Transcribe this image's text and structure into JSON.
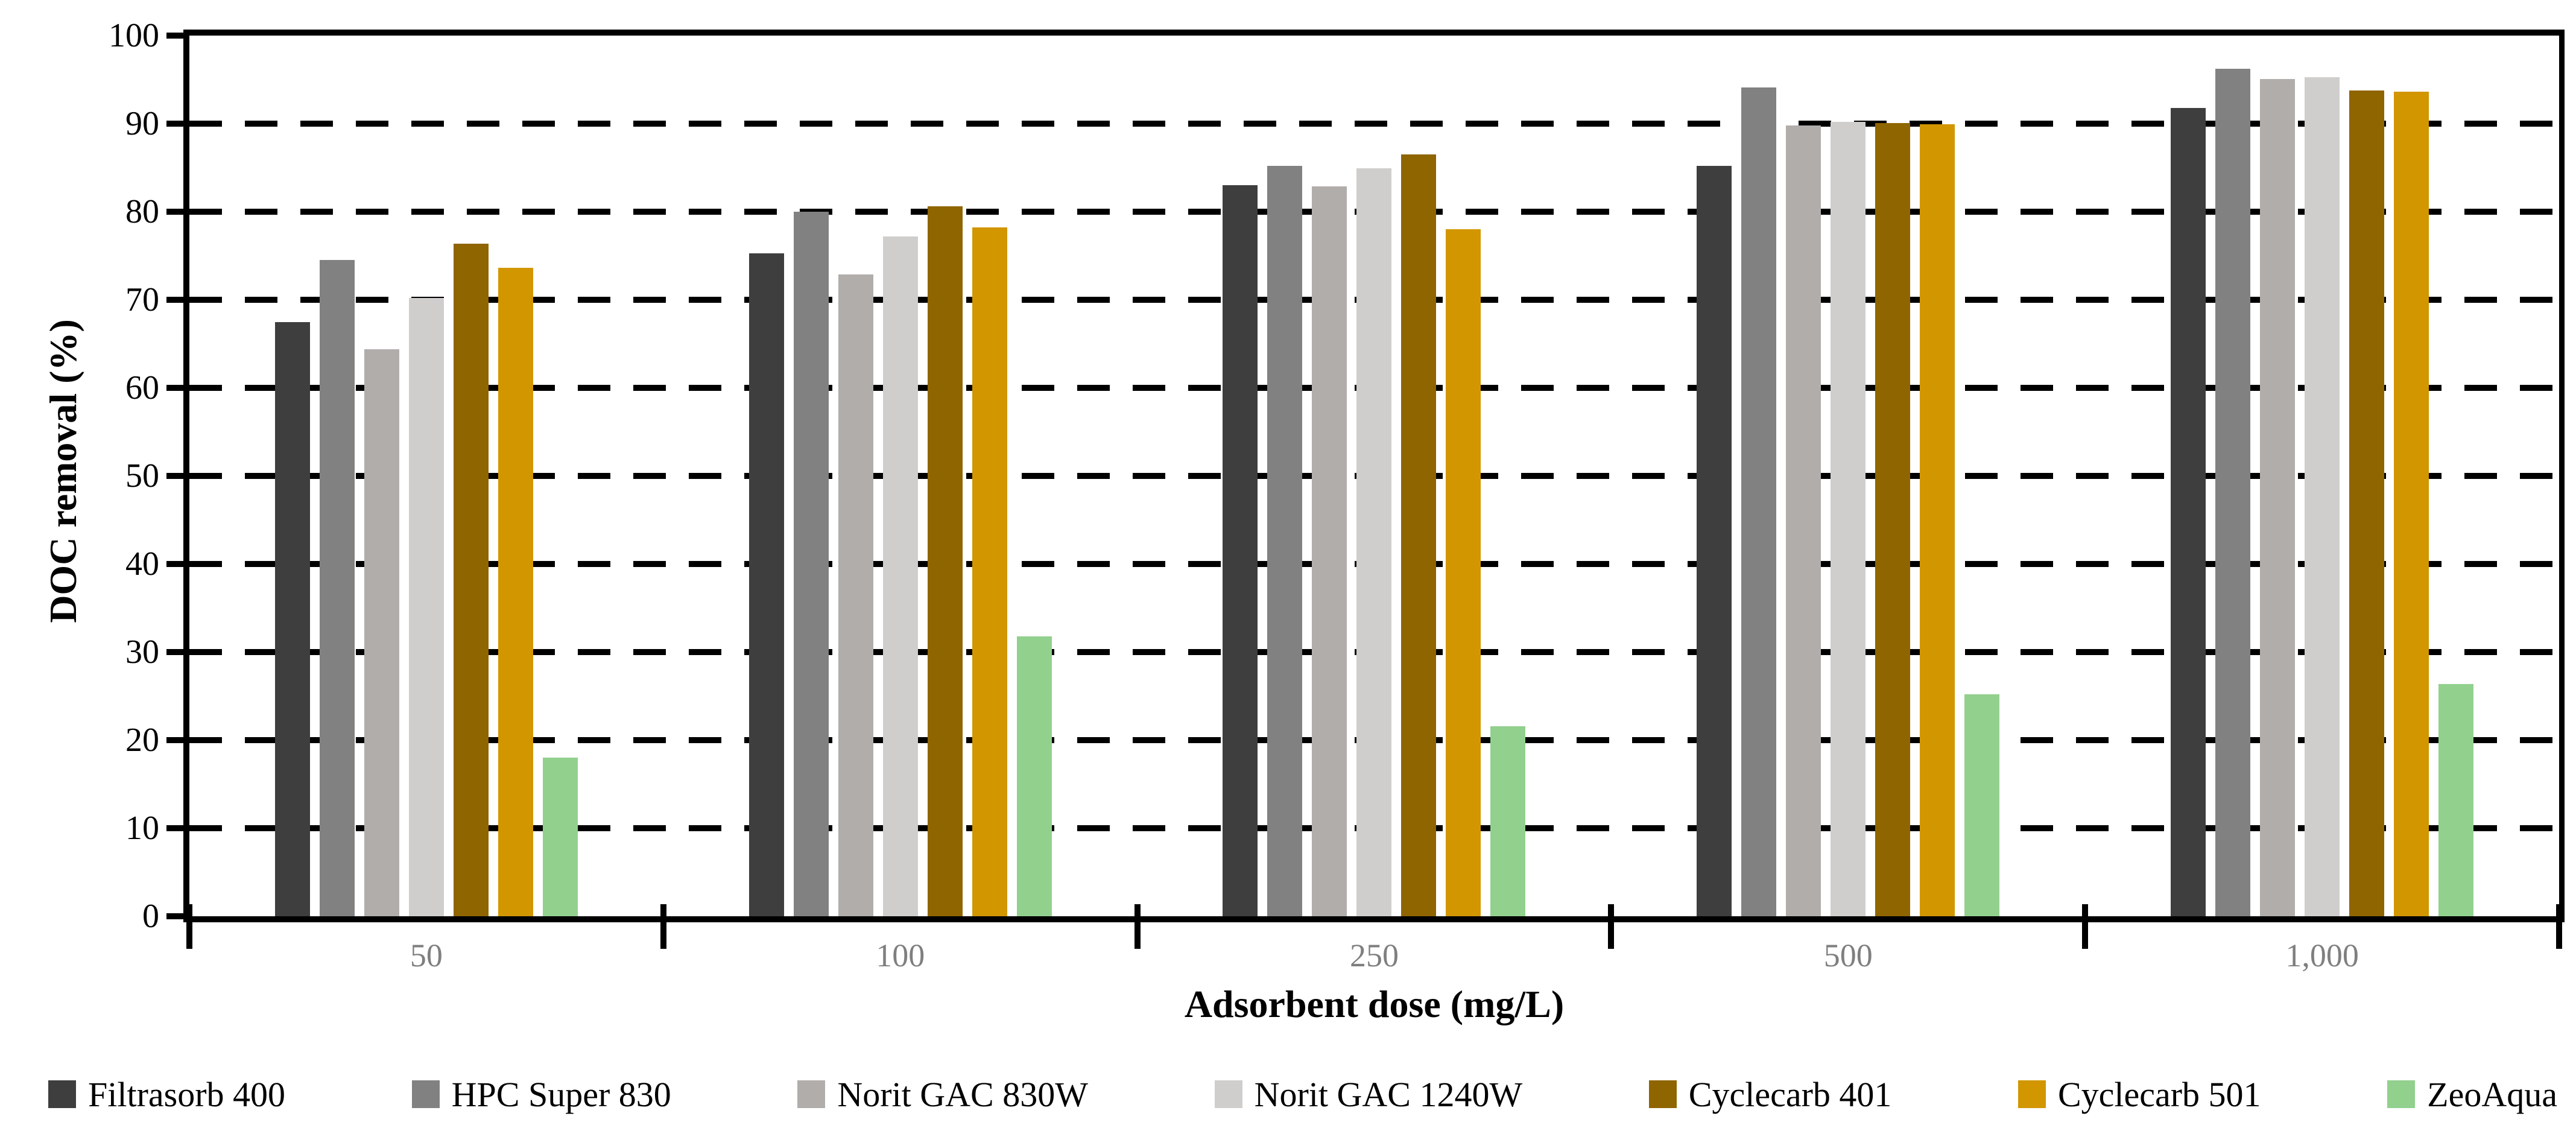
{
  "chart_data": {
    "type": "bar",
    "title": "",
    "xlabel": "Adsorbent dose (mg/L)",
    "ylabel": "DOC removal (%)",
    "ylim": [
      0,
      100
    ],
    "ytick_labels": [
      "0",
      "10",
      "20",
      "30",
      "40",
      "50",
      "60",
      "70",
      "80",
      "90",
      "100"
    ],
    "categories": [
      "50",
      "100",
      "250",
      "500",
      "1,000"
    ],
    "grid": "dashed-horizontal",
    "legend_position": "bottom",
    "axis_color": "#000000",
    "x_tick_label_color": "#7f7f7f",
    "series": [
      {
        "name": "Filtrasorb 400",
        "color": "#3e3e3e",
        "values": [
          67.5,
          75.3,
          83.0,
          85.2,
          91.8
        ]
      },
      {
        "name": "HPC Super 830",
        "color": "#818181",
        "values": [
          74.5,
          80.0,
          85.2,
          94.1,
          96.2
        ]
      },
      {
        "name": "Norit GAC 830W",
        "color": "#b1adab",
        "values": [
          64.4,
          72.9,
          82.9,
          89.8,
          95.1
        ]
      },
      {
        "name": "Norit GAC 1240W",
        "color": "#d0cecc",
        "values": [
          70.2,
          77.2,
          84.9,
          90.2,
          95.3
        ]
      },
      {
        "name": "Cyclecarb 401",
        "color": "#8f6500",
        "values": [
          76.4,
          80.6,
          86.5,
          90.1,
          93.8
        ]
      },
      {
        "name": "Cyclecarb 501",
        "color": "#d29600",
        "values": [
          73.6,
          78.2,
          78.0,
          89.9,
          93.6
        ]
      },
      {
        "name": "ZeoAqua",
        "color": "#92d08e",
        "values": [
          18.0,
          31.8,
          21.6,
          25.2,
          26.4
        ]
      }
    ]
  }
}
